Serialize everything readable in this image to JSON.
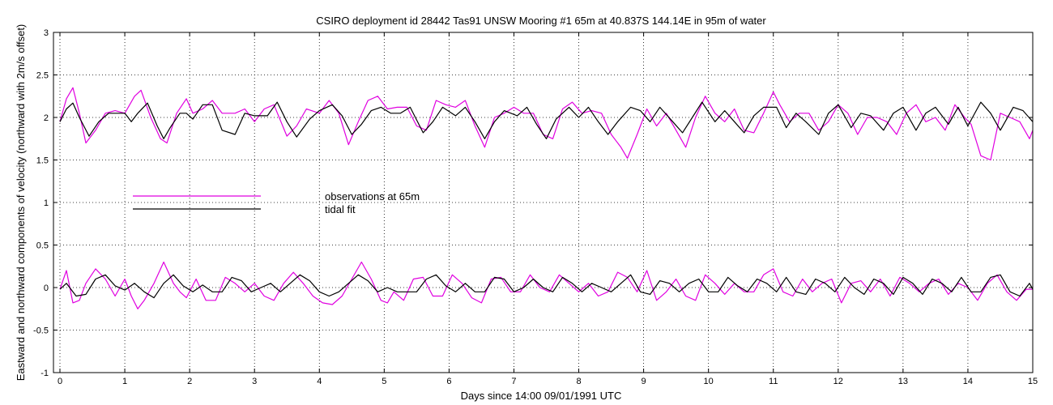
{
  "chart_data": {
    "type": "line",
    "title": "CSIRO deployment id 28442 Tas91 UNSW Mooring #1 65m at 40.837S 144.14E in 95m of water",
    "xlabel": "Days since 14:00 09/01/1991 UTC",
    "ylabel": "Eastward  and northward components of velocity  (northward with 2m/s offset)",
    "xlim": [
      -0.1,
      15
    ],
    "ylim": [
      -1,
      3
    ],
    "grid": true,
    "x_ticks": [
      0,
      1,
      2,
      3,
      4,
      5,
      6,
      7,
      8,
      9,
      10,
      11,
      12,
      13,
      14,
      15
    ],
    "x_tick_labels": [
      "0",
      "1",
      "2",
      "3",
      "4",
      "5",
      "6",
      "7",
      "8",
      "9",
      "10",
      "11",
      "12",
      "13",
      "14",
      "15"
    ],
    "y_ticks": [
      -1,
      -0.5,
      0,
      0.5,
      1,
      1.5,
      2,
      2.5,
      3
    ],
    "y_tick_labels": [
      "-1",
      "-0.5",
      "0",
      "0.5",
      "1",
      "1.5",
      "2",
      "2.5",
      "3"
    ],
    "legend": {
      "placement": "center-left",
      "entries": [
        {
          "label": "observations at 65m",
          "color": "#e000e0"
        },
        {
          "label": "tidal fit",
          "color": "#000000"
        }
      ]
    },
    "series": [
      {
        "name": "observations at 65m (northward + 2 m/s)",
        "color": "#e000e0",
        "x": [
          0,
          0.1,
          0.2,
          0.3,
          0.4,
          0.55,
          0.7,
          0.85,
          1.0,
          1.15,
          1.25,
          1.4,
          1.55,
          1.65,
          1.8,
          1.95,
          2.05,
          2.2,
          2.35,
          2.5,
          2.7,
          2.85,
          3.0,
          3.15,
          3.3,
          3.5,
          3.65,
          3.8,
          4.0,
          4.15,
          4.3,
          4.45,
          4.6,
          4.75,
          4.9,
          5.05,
          5.2,
          5.35,
          5.5,
          5.65,
          5.8,
          5.95,
          6.1,
          6.25,
          6.4,
          6.55,
          6.7,
          6.85,
          7.0,
          7.15,
          7.3,
          7.45,
          7.6,
          7.75,
          7.9,
          8.05,
          8.2,
          8.35,
          8.5,
          8.65,
          8.75,
          8.9,
          9.05,
          9.2,
          9.35,
          9.5,
          9.65,
          9.8,
          9.95,
          10.1,
          10.25,
          10.4,
          10.55,
          10.7,
          10.85,
          11.0,
          11.1,
          11.25,
          11.4,
          11.55,
          11.7,
          11.85,
          12.0,
          12.15,
          12.3,
          12.45,
          12.6,
          12.75,
          12.9,
          13.05,
          13.2,
          13.35,
          13.5,
          13.65,
          13.8,
          13.95,
          14.05,
          14.2,
          14.35,
          14.5,
          14.65,
          14.8,
          14.95,
          15.0
        ],
        "y": [
          1.95,
          2.22,
          2.35,
          2.05,
          1.7,
          1.85,
          2.05,
          2.08,
          2.05,
          2.25,
          2.32,
          2.0,
          1.75,
          1.7,
          2.05,
          2.22,
          2.05,
          2.1,
          2.2,
          2.05,
          2.05,
          2.1,
          1.95,
          2.1,
          2.15,
          1.78,
          1.9,
          2.1,
          2.05,
          2.2,
          2.05,
          1.68,
          1.95,
          2.2,
          2.25,
          2.1,
          2.12,
          2.12,
          1.9,
          1.85,
          2.2,
          2.15,
          2.12,
          2.2,
          1.9,
          1.65,
          2.0,
          2.05,
          2.12,
          2.05,
          2.05,
          1.8,
          1.75,
          2.1,
          2.18,
          2.05,
          2.08,
          2.05,
          1.8,
          1.65,
          1.52,
          1.8,
          2.1,
          1.9,
          2.05,
          1.85,
          1.65,
          2.0,
          2.25,
          2.05,
          1.95,
          2.1,
          1.85,
          1.82,
          2.05,
          2.3,
          2.15,
          1.95,
          2.05,
          2.05,
          1.85,
          1.95,
          2.15,
          2.05,
          1.8,
          2.0,
          2.0,
          1.95,
          1.8,
          2.05,
          2.15,
          1.95,
          2.0,
          1.85,
          2.15,
          2.0,
          1.92,
          1.55,
          1.5,
          2.05,
          2.0,
          1.95,
          1.75,
          1.85
        ]
      },
      {
        "name": "tidal fit (northward + 2 m/s)",
        "color": "#000000",
        "x": [
          0,
          0.1,
          0.2,
          0.3,
          0.45,
          0.6,
          0.75,
          0.9,
          1.0,
          1.1,
          1.2,
          1.35,
          1.5,
          1.6,
          1.7,
          1.85,
          1.95,
          2.05,
          2.2,
          2.35,
          2.5,
          2.7,
          2.85,
          3.0,
          3.2,
          3.35,
          3.5,
          3.65,
          3.85,
          4.0,
          4.2,
          4.35,
          4.5,
          4.65,
          4.8,
          4.95,
          5.1,
          5.25,
          5.4,
          5.6,
          5.75,
          5.9,
          6.1,
          6.25,
          6.4,
          6.55,
          6.7,
          6.85,
          7.05,
          7.2,
          7.35,
          7.5,
          7.65,
          7.85,
          8.0,
          8.15,
          8.3,
          8.45,
          8.6,
          8.8,
          8.95,
          9.1,
          9.25,
          9.45,
          9.6,
          9.75,
          9.9,
          10.1,
          10.25,
          10.4,
          10.55,
          10.7,
          10.85,
          11.05,
          11.2,
          11.35,
          11.5,
          11.7,
          11.85,
          12.0,
          12.2,
          12.35,
          12.5,
          12.7,
          12.85,
          13.0,
          13.2,
          13.35,
          13.5,
          13.7,
          13.85,
          14.0,
          14.2,
          14.35,
          14.5,
          14.7,
          14.85,
          15.0
        ],
        "y": [
          1.95,
          2.1,
          2.17,
          2.0,
          1.78,
          1.95,
          2.05,
          2.05,
          2.05,
          1.95,
          2.05,
          2.17,
          1.9,
          1.75,
          1.88,
          2.05,
          2.05,
          1.98,
          2.15,
          2.15,
          1.85,
          1.8,
          2.05,
          2.02,
          2.02,
          2.18,
          1.95,
          1.77,
          1.98,
          2.08,
          2.15,
          2.02,
          1.8,
          1.92,
          2.08,
          2.12,
          2.05,
          2.05,
          2.12,
          1.82,
          1.95,
          2.12,
          2.02,
          2.12,
          1.95,
          1.75,
          1.95,
          2.08,
          2.02,
          2.12,
          1.92,
          1.75,
          1.98,
          2.12,
          2.0,
          2.12,
          1.95,
          1.8,
          1.95,
          2.12,
          2.08,
          1.95,
          2.12,
          1.95,
          1.82,
          2.0,
          2.18,
          1.95,
          2.08,
          1.95,
          1.82,
          2.02,
          2.12,
          2.12,
          1.88,
          2.05,
          1.95,
          1.8,
          2.05,
          2.15,
          1.88,
          2.05,
          2.02,
          1.85,
          2.05,
          2.12,
          1.85,
          2.05,
          2.12,
          1.92,
          2.12,
          1.9,
          2.18,
          2.05,
          1.85,
          2.12,
          2.08,
          1.95
        ]
      },
      {
        "name": "observations at 65m (eastward)",
        "color": "#e000e0",
        "x": [
          0,
          0.1,
          0.2,
          0.3,
          0.4,
          0.55,
          0.7,
          0.85,
          1.0,
          1.1,
          1.2,
          1.3,
          1.45,
          1.6,
          1.75,
          1.85,
          1.95,
          2.1,
          2.25,
          2.4,
          2.55,
          2.7,
          2.85,
          3.0,
          3.15,
          3.3,
          3.45,
          3.6,
          3.75,
          3.9,
          4.05,
          4.2,
          4.35,
          4.5,
          4.65,
          4.8,
          4.95,
          5.05,
          5.15,
          5.3,
          5.45,
          5.6,
          5.75,
          5.9,
          6.05,
          6.2,
          6.35,
          6.5,
          6.65,
          6.8,
          6.95,
          7.1,
          7.25,
          7.4,
          7.55,
          7.7,
          7.85,
          8.0,
          8.15,
          8.3,
          8.45,
          8.6,
          8.75,
          8.9,
          9.05,
          9.2,
          9.35,
          9.5,
          9.65,
          9.8,
          9.95,
          10.1,
          10.25,
          10.4,
          10.55,
          10.7,
          10.85,
          11.0,
          11.15,
          11.3,
          11.45,
          11.6,
          11.75,
          11.9,
          12.05,
          12.2,
          12.35,
          12.5,
          12.65,
          12.8,
          12.95,
          13.1,
          13.25,
          13.4,
          13.55,
          13.7,
          13.85,
          14.0,
          14.15,
          14.3,
          14.45,
          14.6,
          14.75,
          14.9,
          15.0
        ],
        "y": [
          -0.02,
          0.2,
          -0.18,
          -0.15,
          0.05,
          0.22,
          0.1,
          -0.1,
          0.1,
          -0.1,
          -0.25,
          -0.15,
          0.05,
          0.3,
          0.05,
          -0.05,
          -0.12,
          0.1,
          -0.15,
          -0.15,
          0.12,
          0.05,
          -0.05,
          0.05,
          -0.1,
          -0.15,
          0.05,
          0.18,
          0.05,
          -0.1,
          -0.18,
          -0.2,
          -0.1,
          0.1,
          0.3,
          0.1,
          -0.15,
          -0.18,
          -0.05,
          -0.15,
          0.1,
          0.12,
          -0.1,
          -0.1,
          0.15,
          0.05,
          -0.12,
          -0.18,
          0.1,
          0.12,
          -0.05,
          -0.05,
          0.15,
          0.0,
          -0.05,
          0.15,
          0.05,
          -0.05,
          0.05,
          -0.1,
          -0.05,
          0.18,
          0.12,
          -0.05,
          0.2,
          -0.15,
          -0.05,
          0.1,
          -0.1,
          -0.15,
          0.15,
          0.05,
          -0.08,
          0.05,
          -0.05,
          -0.05,
          0.15,
          0.22,
          -0.05,
          -0.1,
          0.1,
          -0.05,
          0.05,
          0.1,
          -0.18,
          0.05,
          0.08,
          -0.05,
          0.1,
          -0.1,
          0.12,
          0.05,
          -0.05,
          0.05,
          0.1,
          -0.08,
          0.05,
          0.0,
          -0.15,
          0.05,
          0.15,
          -0.05,
          -0.15,
          -0.02,
          -0.02
        ]
      },
      {
        "name": "tidal fit (eastward)",
        "color": "#000000",
        "x": [
          0,
          0.1,
          0.25,
          0.4,
          0.55,
          0.7,
          0.85,
          1.0,
          1.15,
          1.3,
          1.45,
          1.6,
          1.75,
          1.9,
          2.05,
          2.2,
          2.35,
          2.5,
          2.65,
          2.8,
          2.95,
          3.1,
          3.25,
          3.4,
          3.55,
          3.7,
          3.85,
          4.0,
          4.15,
          4.3,
          4.45,
          4.6,
          4.75,
          4.9,
          5.05,
          5.2,
          5.35,
          5.5,
          5.65,
          5.8,
          5.95,
          6.1,
          6.25,
          6.4,
          6.55,
          6.7,
          6.85,
          7.0,
          7.15,
          7.3,
          7.45,
          7.6,
          7.75,
          7.9,
          8.05,
          8.2,
          8.35,
          8.5,
          8.65,
          8.8,
          8.95,
          9.1,
          9.25,
          9.4,
          9.55,
          9.7,
          9.85,
          10.0,
          10.15,
          10.3,
          10.45,
          10.6,
          10.75,
          10.9,
          11.05,
          11.2,
          11.35,
          11.5,
          11.65,
          11.8,
          11.95,
          12.1,
          12.25,
          12.4,
          12.55,
          12.7,
          12.85,
          13.0,
          13.15,
          13.3,
          13.45,
          13.6,
          13.75,
          13.9,
          14.05,
          14.2,
          14.35,
          14.5,
          14.65,
          14.8,
          14.95,
          15.0
        ],
        "y": [
          -0.02,
          0.05,
          -0.1,
          -0.08,
          0.1,
          0.15,
          0.02,
          -0.03,
          0.05,
          -0.05,
          -0.12,
          0.05,
          0.15,
          0.02,
          -0.05,
          0.03,
          -0.05,
          -0.05,
          0.12,
          0.08,
          -0.05,
          0.0,
          0.05,
          -0.05,
          0.05,
          0.15,
          0.08,
          -0.05,
          -0.1,
          -0.05,
          0.05,
          0.15,
          0.08,
          -0.05,
          0.0,
          -0.05,
          -0.05,
          -0.05,
          0.1,
          0.15,
          0.02,
          -0.05,
          0.05,
          -0.05,
          -0.05,
          0.12,
          0.1,
          -0.05,
          0.0,
          0.1,
          0.0,
          -0.05,
          0.12,
          0.05,
          -0.05,
          0.05,
          0.0,
          -0.05,
          0.05,
          0.15,
          -0.05,
          -0.08,
          0.08,
          0.05,
          -0.05,
          0.05,
          0.1,
          -0.05,
          -0.05,
          0.12,
          0.02,
          -0.05,
          0.1,
          0.05,
          -0.05,
          0.12,
          -0.05,
          -0.08,
          0.1,
          0.05,
          -0.05,
          0.12,
          0.0,
          -0.08,
          0.1,
          0.05,
          -0.08,
          0.12,
          0.05,
          -0.08,
          0.1,
          0.05,
          -0.05,
          0.12,
          -0.05,
          -0.05,
          0.12,
          0.15,
          -0.05,
          -0.1,
          0.05,
          -0.02
        ]
      }
    ]
  }
}
